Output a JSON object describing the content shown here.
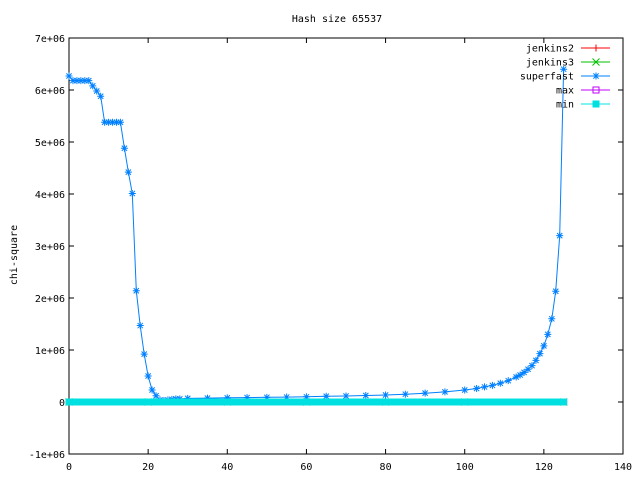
{
  "chart_data": {
    "type": "line",
    "title": "Hash size 65537",
    "ylabel": "chi-square",
    "xlabel": "",
    "xlim": [
      0,
      140
    ],
    "ylim": [
      -1000000,
      7000000
    ],
    "x_ticks": [
      0,
      20,
      40,
      60,
      80,
      100,
      120,
      140
    ],
    "x_tick_labels": [
      "0",
      "20",
      "40",
      "60",
      "80",
      "100",
      "120",
      "140"
    ],
    "y_ticks": [
      -1000000,
      0,
      1000000,
      2000000,
      3000000,
      4000000,
      5000000,
      6000000,
      7000000
    ],
    "y_tick_labels": [
      "-1e+06",
      "0",
      "1e+06",
      "2e+06",
      "3e+06",
      "4e+06",
      "5e+06",
      "6e+06",
      "7e+06"
    ],
    "grid": false,
    "legend_position": "top-right",
    "series": [
      {
        "name": "jenkins2",
        "color": "#ff0000",
        "marker": "plus",
        "points": [
          [
            0,
            0
          ],
          [
            20,
            0
          ],
          [
            40,
            0
          ],
          [
            60,
            0
          ],
          [
            80,
            0
          ],
          [
            100,
            0
          ],
          [
            125,
            0
          ]
        ]
      },
      {
        "name": "jenkins3",
        "color": "#00c000",
        "marker": "cross",
        "points": [
          [
            0,
            0
          ],
          [
            20,
            0
          ],
          [
            40,
            0
          ],
          [
            60,
            0
          ],
          [
            80,
            0
          ],
          [
            100,
            0
          ],
          [
            125,
            0
          ]
        ]
      },
      {
        "name": "superfast",
        "color": "#0080ff",
        "marker": "star",
        "points": [
          [
            0,
            6270000
          ],
          [
            1,
            6180000
          ],
          [
            2,
            6180000
          ],
          [
            3,
            6180000
          ],
          [
            4,
            6180000
          ],
          [
            5,
            6180000
          ],
          [
            6,
            6080000
          ],
          [
            7,
            5980000
          ],
          [
            8,
            5880000
          ],
          [
            9,
            5380000
          ],
          [
            10,
            5380000
          ],
          [
            11,
            5380000
          ],
          [
            12,
            5380000
          ],
          [
            13,
            5380000
          ],
          [
            14,
            4880000
          ],
          [
            15,
            4420000
          ],
          [
            16,
            4010000
          ],
          [
            17,
            2140000
          ],
          [
            18,
            1470000
          ],
          [
            19,
            920000
          ],
          [
            20,
            500000
          ],
          [
            21,
            230000
          ],
          [
            22,
            120000
          ],
          [
            23,
            40000
          ],
          [
            24,
            30000
          ],
          [
            25,
            40000
          ],
          [
            26,
            50000
          ],
          [
            27,
            60000
          ],
          [
            28,
            60000
          ],
          [
            30,
            70000
          ],
          [
            35,
            75000
          ],
          [
            40,
            80000
          ],
          [
            45,
            85000
          ],
          [
            50,
            90000
          ],
          [
            55,
            95000
          ],
          [
            60,
            100000
          ],
          [
            65,
            110000
          ],
          [
            70,
            115000
          ],
          [
            75,
            125000
          ],
          [
            80,
            135000
          ],
          [
            85,
            150000
          ],
          [
            90,
            170000
          ],
          [
            95,
            195000
          ],
          [
            100,
            230000
          ],
          [
            103,
            260000
          ],
          [
            105,
            290000
          ],
          [
            107,
            320000
          ],
          [
            109,
            360000
          ],
          [
            111,
            410000
          ],
          [
            113,
            480000
          ],
          [
            114,
            520000
          ],
          [
            115,
            570000
          ],
          [
            116,
            630000
          ],
          [
            117,
            700000
          ],
          [
            118,
            800000
          ],
          [
            119,
            930000
          ],
          [
            120,
            1080000
          ],
          [
            121,
            1300000
          ],
          [
            122,
            1600000
          ],
          [
            123,
            2130000
          ],
          [
            124,
            3200000
          ],
          [
            125,
            6400000
          ]
        ]
      },
      {
        "name": "max",
        "color": "#c000ff",
        "marker": "square-open",
        "points": [
          [
            0,
            0
          ],
          [
            125,
            0
          ]
        ]
      },
      {
        "name": "min",
        "color": "#00e0e0",
        "marker": "square-filled",
        "points": [
          [
            0,
            0
          ],
          [
            1,
            0
          ],
          [
            2,
            0
          ],
          [
            3,
            0
          ],
          [
            4,
            0
          ],
          [
            5,
            0
          ],
          [
            6,
            0
          ],
          [
            7,
            0
          ],
          [
            8,
            0
          ],
          [
            9,
            0
          ],
          [
            10,
            0
          ],
          [
            11,
            0
          ],
          [
            12,
            0
          ],
          [
            13,
            0
          ],
          [
            14,
            0
          ],
          [
            15,
            0
          ],
          [
            16,
            0
          ],
          [
            17,
            0
          ],
          [
            18,
            0
          ],
          [
            19,
            0
          ],
          [
            20,
            0
          ],
          [
            21,
            0
          ],
          [
            22,
            0
          ],
          [
            23,
            0
          ],
          [
            24,
            0
          ],
          [
            25,
            0
          ],
          [
            26,
            0
          ],
          [
            27,
            0
          ],
          [
            28,
            0
          ],
          [
            29,
            0
          ],
          [
            30,
            0
          ],
          [
            31,
            0
          ],
          [
            32,
            0
          ],
          [
            33,
            0
          ],
          [
            34,
            0
          ],
          [
            35,
            0
          ],
          [
            36,
            0
          ],
          [
            37,
            0
          ],
          [
            38,
            0
          ],
          [
            39,
            0
          ],
          [
            40,
            0
          ],
          [
            41,
            0
          ],
          [
            42,
            0
          ],
          [
            43,
            0
          ],
          [
            44,
            0
          ],
          [
            45,
            0
          ],
          [
            46,
            0
          ],
          [
            47,
            0
          ],
          [
            48,
            0
          ],
          [
            49,
            0
          ],
          [
            50,
            0
          ],
          [
            51,
            0
          ],
          [
            52,
            0
          ],
          [
            53,
            0
          ],
          [
            54,
            0
          ],
          [
            55,
            0
          ],
          [
            56,
            0
          ],
          [
            57,
            0
          ],
          [
            58,
            0
          ],
          [
            59,
            0
          ],
          [
            60,
            0
          ],
          [
            61,
            0
          ],
          [
            62,
            0
          ],
          [
            63,
            0
          ],
          [
            64,
            0
          ],
          [
            65,
            0
          ],
          [
            66,
            0
          ],
          [
            67,
            0
          ],
          [
            68,
            0
          ],
          [
            69,
            0
          ],
          [
            70,
            0
          ],
          [
            71,
            0
          ],
          [
            72,
            0
          ],
          [
            73,
            0
          ],
          [
            74,
            0
          ],
          [
            75,
            0
          ],
          [
            76,
            0
          ],
          [
            77,
            0
          ],
          [
            78,
            0
          ],
          [
            79,
            0
          ],
          [
            80,
            0
          ],
          [
            81,
            0
          ],
          [
            82,
            0
          ],
          [
            83,
            0
          ],
          [
            84,
            0
          ],
          [
            85,
            0
          ],
          [
            86,
            0
          ],
          [
            87,
            0
          ],
          [
            88,
            0
          ],
          [
            89,
            0
          ],
          [
            90,
            0
          ],
          [
            91,
            0
          ],
          [
            92,
            0
          ],
          [
            93,
            0
          ],
          [
            94,
            0
          ],
          [
            95,
            0
          ],
          [
            96,
            0
          ],
          [
            97,
            0
          ],
          [
            98,
            0
          ],
          [
            99,
            0
          ],
          [
            100,
            0
          ],
          [
            101,
            0
          ],
          [
            102,
            0
          ],
          [
            103,
            0
          ],
          [
            104,
            0
          ],
          [
            105,
            0
          ],
          [
            106,
            0
          ],
          [
            107,
            0
          ],
          [
            108,
            0
          ],
          [
            109,
            0
          ],
          [
            110,
            0
          ],
          [
            111,
            0
          ],
          [
            112,
            0
          ],
          [
            113,
            0
          ],
          [
            114,
            0
          ],
          [
            115,
            0
          ],
          [
            116,
            0
          ],
          [
            117,
            0
          ],
          [
            118,
            0
          ],
          [
            119,
            0
          ],
          [
            120,
            0
          ],
          [
            121,
            0
          ],
          [
            122,
            0
          ],
          [
            123,
            0
          ],
          [
            124,
            0
          ],
          [
            125,
            0
          ]
        ]
      }
    ]
  }
}
